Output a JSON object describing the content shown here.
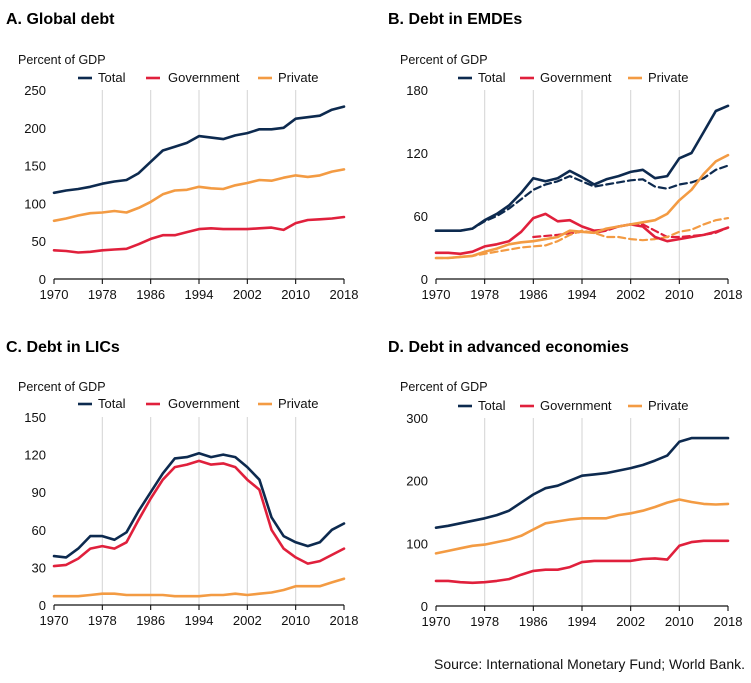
{
  "source": "Source: International Monetary Fund; World Bank.",
  "colors": {
    "Total": "#0d2a4f",
    "Government": "#e0203c",
    "Private": "#f39b43",
    "grid": "#d7d7d7",
    "axis": "#111111"
  },
  "legend_labels": [
    "Total",
    "Government",
    "Private"
  ],
  "chart_data": [
    {
      "type": "line",
      "title": "A. Global debt",
      "ylabel": "Percent of GDP",
      "ylim": [
        0,
        250
      ],
      "yticks": [
        0,
        50,
        100,
        150,
        200,
        250
      ],
      "xlim": [
        1970,
        2018
      ],
      "xticks": [
        1970,
        1978,
        1986,
        1994,
        2002,
        2010,
        2018
      ],
      "grid": "vertical",
      "series": [
        {
          "name": "Total",
          "x": [
            1970,
            1972,
            1974,
            1976,
            1978,
            1980,
            1982,
            1984,
            1986,
            1988,
            1990,
            1992,
            1994,
            1996,
            1998,
            2000,
            2002,
            2004,
            2006,
            2008,
            2010,
            2012,
            2014,
            2016,
            2018
          ],
          "y": [
            114,
            117,
            119,
            122,
            126,
            129,
            131,
            140,
            155,
            170,
            175,
            180,
            189,
            187,
            185,
            190,
            193,
            198,
            198,
            200,
            212,
            214,
            216,
            224,
            228
          ]
        },
        {
          "name": "Government",
          "x": [
            1970,
            1972,
            1974,
            1976,
            1978,
            1980,
            1982,
            1984,
            1986,
            1988,
            1990,
            1992,
            1994,
            1996,
            1998,
            2000,
            2002,
            2004,
            2006,
            2008,
            2010,
            2012,
            2014,
            2016,
            2018
          ],
          "y": [
            38,
            37,
            35,
            36,
            38,
            39,
            40,
            46,
            53,
            58,
            58,
            62,
            66,
            67,
            66,
            66,
            66,
            67,
            68,
            65,
            74,
            78,
            79,
            80,
            82
          ]
        },
        {
          "name": "Private",
          "x": [
            1970,
            1972,
            1974,
            1976,
            1978,
            1980,
            1982,
            1984,
            1986,
            1988,
            1990,
            1992,
            1994,
            1996,
            1998,
            2000,
            2002,
            2004,
            2006,
            2008,
            2010,
            2012,
            2014,
            2016,
            2018
          ],
          "y": [
            77,
            80,
            84,
            87,
            88,
            90,
            88,
            94,
            102,
            112,
            117,
            118,
            122,
            120,
            119,
            124,
            127,
            131,
            130,
            134,
            137,
            135,
            137,
            142,
            145
          ]
        }
      ]
    },
    {
      "type": "line",
      "title": "B. Debt in EMDEs",
      "ylabel": "Percent of GDP",
      "ylim": [
        0,
        180
      ],
      "yticks": [
        0,
        60,
        120,
        180
      ],
      "xlim": [
        1970,
        2018
      ],
      "xticks": [
        1970,
        1978,
        1986,
        1994,
        2002,
        2010,
        2018
      ],
      "grid": "vertical",
      "series": [
        {
          "name": "Total",
          "x": [
            1970,
            1972,
            1974,
            1976,
            1978,
            1980,
            1982,
            1984,
            1986,
            1988,
            1990,
            1992,
            1994,
            1996,
            1998,
            2000,
            2002,
            2004,
            2006,
            2008,
            2010,
            2012,
            2014,
            2016,
            2018
          ],
          "y": [
            46,
            46,
            46,
            48,
            56,
            62,
            70,
            82,
            96,
            93,
            96,
            103,
            97,
            90,
            95,
            98,
            102,
            104,
            96,
            98,
            115,
            120,
            140,
            160,
            165
          ]
        },
        {
          "name": "Government",
          "x": [
            1970,
            1972,
            1974,
            1976,
            1978,
            1980,
            1982,
            1984,
            1986,
            1988,
            1990,
            1992,
            1994,
            1996,
            1998,
            2000,
            2002,
            2004,
            2006,
            2008,
            2010,
            2012,
            2014,
            2016,
            2018
          ],
          "y": [
            25,
            25,
            24,
            26,
            31,
            33,
            36,
            45,
            58,
            62,
            55,
            56,
            50,
            46,
            47,
            50,
            52,
            50,
            40,
            36,
            38,
            40,
            42,
            45,
            49
          ]
        },
        {
          "name": "Private",
          "x": [
            1970,
            1972,
            1974,
            1976,
            1978,
            1980,
            1982,
            1984,
            1986,
            1988,
            1990,
            1992,
            1994,
            1996,
            1998,
            2000,
            2002,
            2004,
            2006,
            2008,
            2010,
            2012,
            2014,
            2016,
            2018
          ],
          "y": [
            20,
            20,
            21,
            22,
            26,
            29,
            33,
            35,
            36,
            38,
            40,
            46,
            45,
            44,
            48,
            50,
            52,
            54,
            56,
            62,
            75,
            85,
            100,
            112,
            118
          ]
        },
        {
          "name": "Total",
          "dashed": true,
          "x": [
            1970,
            1972,
            1974,
            1976,
            1978,
            1980,
            1982,
            1984,
            1986,
            1988,
            1990,
            1992,
            1994,
            1996,
            1998,
            2000,
            2002,
            2004,
            2006,
            2008,
            2010,
            2012,
            2014,
            2016,
            2018
          ],
          "y": [
            46,
            46,
            46,
            48,
            55,
            60,
            67,
            76,
            85,
            90,
            93,
            98,
            93,
            88,
            90,
            92,
            94,
            95,
            88,
            86,
            90,
            92,
            96,
            104,
            108
          ]
        },
        {
          "name": "Government",
          "dashed": true,
          "x": [
            1986,
            1990,
            1994,
            1996,
            1998,
            2000,
            2002,
            2004,
            2006,
            2008,
            2010,
            2012,
            2014,
            2016,
            2018
          ],
          "y": [
            40,
            42,
            45,
            44,
            46,
            50,
            52,
            52,
            46,
            40,
            40,
            41,
            42,
            44,
            49
          ]
        },
        {
          "name": "Private",
          "dashed": true,
          "x": [
            1970,
            1972,
            1974,
            1976,
            1978,
            1980,
            1982,
            1984,
            1986,
            1988,
            1990,
            1992,
            1994,
            1996,
            1998,
            2000,
            2002,
            2004,
            2006,
            2008,
            2010,
            2012,
            2014,
            2016,
            2018
          ],
          "y": [
            20,
            20,
            21,
            22,
            24,
            26,
            28,
            30,
            31,
            32,
            36,
            42,
            46,
            44,
            40,
            40,
            38,
            37,
            38,
            40,
            45,
            47,
            52,
            56,
            58
          ]
        }
      ]
    },
    {
      "type": "line",
      "title": "C. Debt in LICs",
      "ylabel": "Percent of GDP",
      "ylim": [
        0,
        150
      ],
      "yticks": [
        0,
        30,
        60,
        90,
        120,
        150
      ],
      "xlim": [
        1970,
        2018
      ],
      "xticks": [
        1970,
        1978,
        1986,
        1994,
        2002,
        2010,
        2018
      ],
      "grid": "vertical",
      "series": [
        {
          "name": "Total",
          "x": [
            1970,
            1972,
            1974,
            1976,
            1978,
            1980,
            1982,
            1984,
            1986,
            1988,
            1990,
            1992,
            1994,
            1996,
            1998,
            2000,
            2002,
            2004,
            2006,
            2008,
            2010,
            2012,
            2014,
            2016,
            2018
          ],
          "y": [
            39,
            38,
            45,
            55,
            55,
            52,
            58,
            75,
            90,
            105,
            117,
            118,
            121,
            118,
            120,
            118,
            110,
            100,
            70,
            55,
            50,
            47,
            50,
            60,
            65
          ]
        },
        {
          "name": "Government",
          "x": [
            1970,
            1972,
            1974,
            1976,
            1978,
            1980,
            1982,
            1984,
            1986,
            1988,
            1990,
            1992,
            1994,
            1996,
            1998,
            2000,
            2002,
            2004,
            2006,
            2008,
            2010,
            2012,
            2014,
            2016,
            2018
          ],
          "y": [
            31,
            32,
            37,
            45,
            47,
            45,
            50,
            68,
            85,
            100,
            110,
            112,
            115,
            112,
            113,
            110,
            100,
            92,
            60,
            45,
            38,
            33,
            35,
            40,
            45
          ]
        },
        {
          "name": "Private",
          "x": [
            1970,
            1972,
            1974,
            1976,
            1978,
            1980,
            1982,
            1984,
            1986,
            1988,
            1990,
            1992,
            1994,
            1996,
            1998,
            2000,
            2002,
            2004,
            2006,
            2008,
            2010,
            2012,
            2014,
            2016,
            2018
          ],
          "y": [
            7,
            7,
            7,
            8,
            9,
            9,
            8,
            8,
            8,
            8,
            7,
            7,
            7,
            8,
            8,
            9,
            8,
            9,
            10,
            12,
            15,
            15,
            15,
            18,
            21
          ]
        }
      ]
    },
    {
      "type": "line",
      "title": "D. Debt in advanced economies",
      "ylabel": "Percent of GDP",
      "ylim": [
        0,
        300
      ],
      "yticks": [
        0,
        100,
        200,
        300
      ],
      "xlim": [
        1970,
        2018
      ],
      "xticks": [
        1970,
        1978,
        1986,
        1994,
        2002,
        2010,
        2018
      ],
      "grid": "vertical",
      "series": [
        {
          "name": "Total",
          "x": [
            1970,
            1972,
            1974,
            1976,
            1978,
            1980,
            1982,
            1984,
            1986,
            1988,
            1990,
            1992,
            1994,
            1996,
            1998,
            2000,
            2002,
            2004,
            2006,
            2008,
            2010,
            2012,
            2014,
            2016,
            2018
          ],
          "y": [
            125,
            128,
            132,
            136,
            140,
            145,
            152,
            165,
            178,
            188,
            192,
            200,
            208,
            210,
            212,
            216,
            220,
            225,
            232,
            240,
            262,
            268,
            268,
            268,
            268
          ]
        },
        {
          "name": "Government",
          "x": [
            1970,
            1972,
            1974,
            1976,
            1978,
            1980,
            1982,
            1984,
            1986,
            1988,
            1990,
            1992,
            1994,
            1996,
            1998,
            2000,
            2002,
            2004,
            2006,
            2008,
            2010,
            2012,
            2014,
            2016,
            2018
          ],
          "y": [
            40,
            40,
            38,
            37,
            38,
            40,
            43,
            50,
            56,
            58,
            58,
            62,
            70,
            72,
            72,
            72,
            72,
            75,
            76,
            74,
            96,
            102,
            104,
            104,
            104
          ]
        },
        {
          "name": "Private",
          "x": [
            1970,
            1972,
            1974,
            1976,
            1978,
            1980,
            1982,
            1984,
            1986,
            1988,
            1990,
            1992,
            1994,
            1996,
            1998,
            2000,
            2002,
            2004,
            2006,
            2008,
            2010,
            2012,
            2014,
            2016,
            2018
          ],
          "y": [
            84,
            88,
            92,
            96,
            98,
            102,
            106,
            112,
            122,
            132,
            135,
            138,
            140,
            140,
            140,
            145,
            148,
            152,
            158,
            165,
            170,
            166,
            163,
            162,
            163
          ]
        }
      ]
    }
  ]
}
